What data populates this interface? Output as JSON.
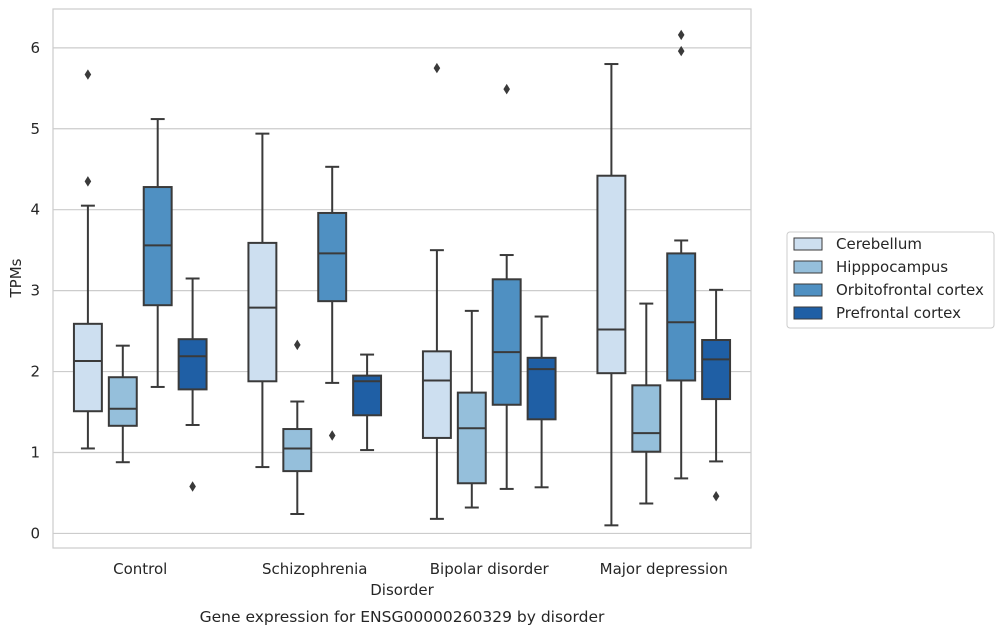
{
  "chart_data": {
    "type": "boxplot",
    "title": "Gene expression for ENSG00000260329 by disorder",
    "xlabel": "Disorder",
    "ylabel": "TPMs",
    "ylim": [
      -0.18,
      6.48
    ],
    "yticks": [
      0,
      1,
      2,
      3,
      4,
      5,
      6
    ],
    "grid": "horizontal",
    "legend_position": "right",
    "categories": [
      "Control",
      "Schizophrenia",
      "Bipolar disorder",
      "Major depression"
    ],
    "series": [
      {
        "name": "Cerebellum",
        "color": "#cddff0",
        "boxes": [
          {
            "whislo": 1.05,
            "q1": 1.51,
            "med": 2.13,
            "q3": 2.59,
            "whishi": 4.05,
            "fliers": [
              4.35,
              5.67
            ]
          },
          {
            "whislo": 0.82,
            "q1": 1.88,
            "med": 2.79,
            "q3": 3.59,
            "whishi": 4.94,
            "fliers": []
          },
          {
            "whislo": 0.18,
            "q1": 1.18,
            "med": 1.89,
            "q3": 2.25,
            "whishi": 3.5,
            "fliers": [
              5.75
            ]
          },
          {
            "whislo": 0.1,
            "q1": 1.98,
            "med": 2.52,
            "q3": 4.42,
            "whishi": 5.8,
            "fliers": []
          }
        ]
      },
      {
        "name": "Hipppocampus",
        "color": "#95bfdb",
        "boxes": [
          {
            "whislo": 0.88,
            "q1": 1.33,
            "med": 1.54,
            "q3": 1.93,
            "whishi": 2.32,
            "fliers": []
          },
          {
            "whislo": 0.24,
            "q1": 0.77,
            "med": 1.05,
            "q3": 1.29,
            "whishi": 1.63,
            "fliers": [
              2.33
            ]
          },
          {
            "whislo": 0.32,
            "q1": 0.62,
            "med": 1.3,
            "q3": 1.74,
            "whishi": 2.75,
            "fliers": []
          },
          {
            "whislo": 0.37,
            "q1": 1.01,
            "med": 1.24,
            "q3": 1.83,
            "whishi": 2.84,
            "fliers": []
          }
        ]
      },
      {
        "name": "Orbitofrontal cortex",
        "color": "#4f90c2",
        "boxes": [
          {
            "whislo": 1.81,
            "q1": 2.82,
            "med": 3.56,
            "q3": 4.28,
            "whishi": 5.12,
            "fliers": []
          },
          {
            "whislo": 1.86,
            "q1": 2.87,
            "med": 3.46,
            "q3": 3.96,
            "whishi": 4.53,
            "fliers": [
              1.21
            ]
          },
          {
            "whislo": 0.55,
            "q1": 1.59,
            "med": 2.24,
            "q3": 3.14,
            "whishi": 3.44,
            "fliers": [
              5.49
            ]
          },
          {
            "whislo": 0.68,
            "q1": 1.89,
            "med": 2.61,
            "q3": 3.46,
            "whishi": 3.62,
            "fliers": [
              5.96,
              6.16
            ]
          }
        ]
      },
      {
        "name": "Prefrontal cortex",
        "color": "#1f5fa5",
        "boxes": [
          {
            "whislo": 1.34,
            "q1": 1.78,
            "med": 2.19,
            "q3": 2.4,
            "whishi": 3.15,
            "fliers": [
              0.58
            ]
          },
          {
            "whislo": 1.03,
            "q1": 1.46,
            "med": 1.88,
            "q3": 1.95,
            "whishi": 2.21,
            "fliers": []
          },
          {
            "whislo": 0.57,
            "q1": 1.41,
            "med": 2.03,
            "q3": 2.17,
            "whishi": 2.68,
            "fliers": []
          },
          {
            "whislo": 0.89,
            "q1": 1.66,
            "med": 2.15,
            "q3": 2.39,
            "whishi": 3.01,
            "fliers": [
              0.46
            ]
          }
        ]
      }
    ]
  }
}
